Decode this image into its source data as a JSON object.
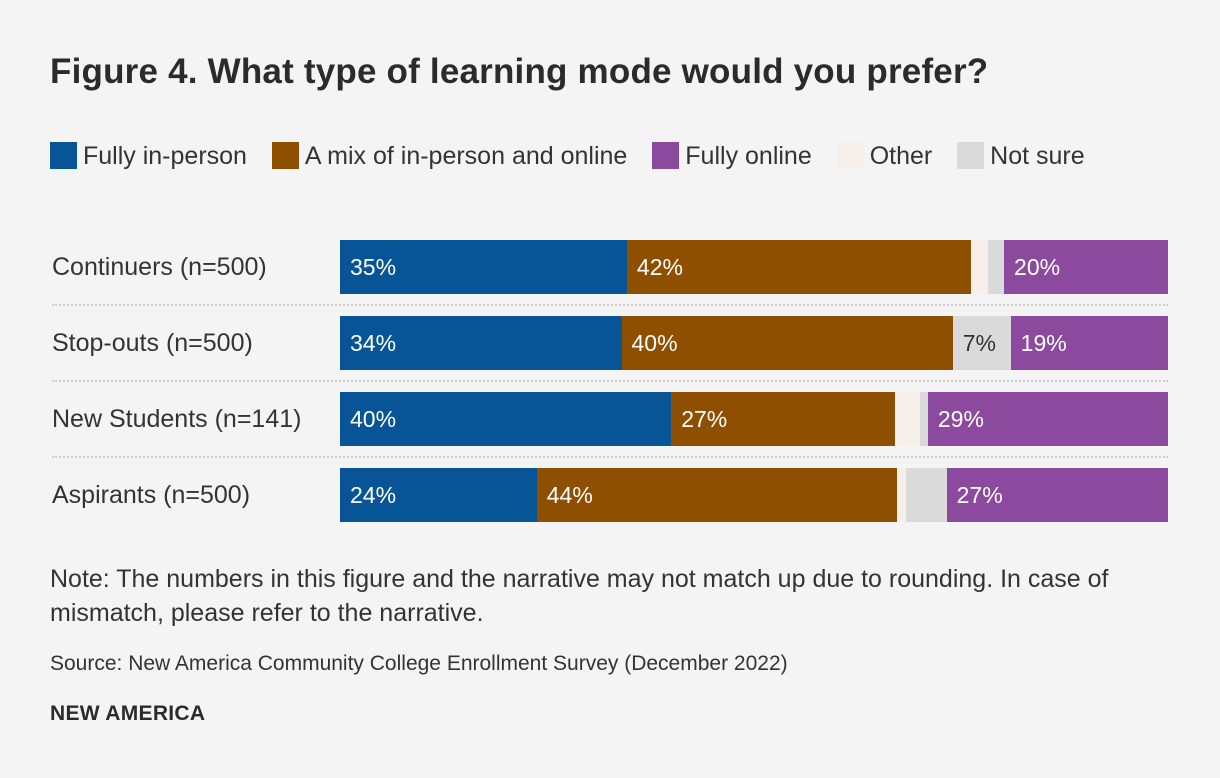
{
  "title": "Figure 4. What type of learning mode would you prefer?",
  "note": "Note: The numbers in this figure and the narrative may not match up due to rounding. In case of mismatch, please refer to the narrative.",
  "source": "Source: New America Community College Enrollment Survey (December 2022)",
  "brand": "NEW AMERICA",
  "colors": {
    "Fully in-person": "#075596",
    "A mix of in-person and online": "#8f4f00",
    "Fully online": "#8c4a9e",
    "Other": "#f7f0ea",
    "Not sure": "#dadada"
  },
  "chart_data": {
    "type": "bar",
    "orientation": "horizontal",
    "stacked": true,
    "categories": [
      "Continuers (n=500)",
      "Stop-outs (n=500)",
      "New Students (n=141)",
      "Aspirants (n=500)"
    ],
    "series": [
      {
        "name": "Fully in-person",
        "values": [
          35,
          34,
          40,
          24
        ],
        "labels": [
          "35%",
          "34%",
          "40%",
          "24%"
        ]
      },
      {
        "name": "A mix of in-person and online",
        "values": [
          42,
          40,
          27,
          44
        ],
        "labels": [
          "42%",
          "40%",
          "27%",
          "44%"
        ]
      },
      {
        "name": "Other",
        "values": [
          2,
          0,
          3,
          1
        ],
        "labels": [
          "",
          "",
          "",
          ""
        ]
      },
      {
        "name": "Not sure",
        "values": [
          2,
          7,
          1,
          5
        ],
        "labels": [
          "",
          "7%",
          "",
          ""
        ]
      },
      {
        "name": "Fully online",
        "values": [
          20,
          19,
          29,
          27
        ],
        "labels": [
          "20%",
          "19%",
          "29%",
          "27%"
        ]
      }
    ],
    "legend_order": [
      "Fully in-person",
      "A mix of in-person and online",
      "Fully online",
      "Other",
      "Not sure"
    ],
    "xlim": [
      0,
      100
    ],
    "legend": "top"
  }
}
